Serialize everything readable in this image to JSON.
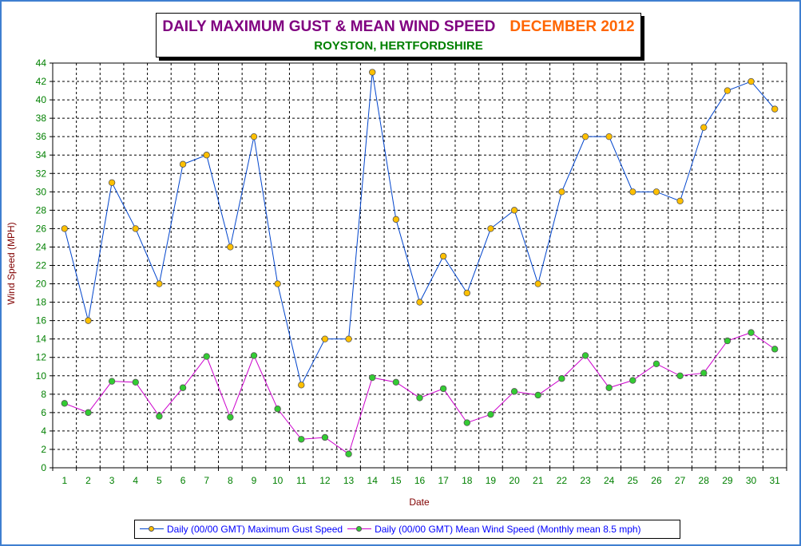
{
  "title": {
    "main": "DAILY MAXIMUM GUST & MEAN WIND SPEED",
    "month": "DECEMBER 2012",
    "location": "ROYSTON, HERTFORDSHIRE"
  },
  "colors": {
    "frame": "#3f7fd0",
    "title_main": "#800080",
    "title_month": "#ff6600",
    "title_location": "#008000",
    "axis_label": "#800000",
    "x_tick": "#008000",
    "y_tick": "#008000",
    "gust_line": "#0044cc",
    "gust_marker": "#ffc000",
    "mean_line": "#cc00cc",
    "mean_marker": "#33cc33",
    "legend_text": "#0000ff"
  },
  "chart_data": {
    "type": "line",
    "xlabel": "Date",
    "ylabel": "Wind Speed (MPH)",
    "ylim": [
      0,
      44
    ],
    "ytick_step": 2,
    "grid": true,
    "legend_position": "bottom",
    "x": [
      1,
      2,
      3,
      4,
      5,
      6,
      7,
      8,
      9,
      10,
      11,
      12,
      13,
      14,
      15,
      16,
      17,
      18,
      19,
      20,
      21,
      22,
      23,
      24,
      25,
      26,
      27,
      28,
      29,
      30,
      31
    ],
    "series": [
      {
        "name": "Daily (00/00 GMT) Maximum Gust Speed",
        "values": [
          26,
          16,
          31,
          26,
          20,
          33,
          34,
          24,
          36,
          20,
          9,
          14,
          14,
          43,
          27,
          18,
          23,
          19,
          26,
          28,
          20,
          30,
          36,
          36,
          30,
          30,
          29,
          37,
          41,
          42,
          39
        ]
      },
      {
        "name": "Daily (00/00 GMT) Mean Wind Speed (Monthly mean 8.5 mph)",
        "values": [
          7.0,
          6.0,
          9.4,
          9.3,
          5.6,
          8.7,
          12.1,
          5.5,
          12.2,
          6.4,
          3.1,
          3.3,
          1.5,
          9.8,
          9.3,
          7.6,
          8.6,
          4.9,
          5.8,
          8.3,
          7.9,
          9.7,
          12.2,
          8.7,
          9.5,
          11.3,
          10.0,
          10.3,
          13.8,
          14.7,
          12.9
        ]
      }
    ]
  }
}
